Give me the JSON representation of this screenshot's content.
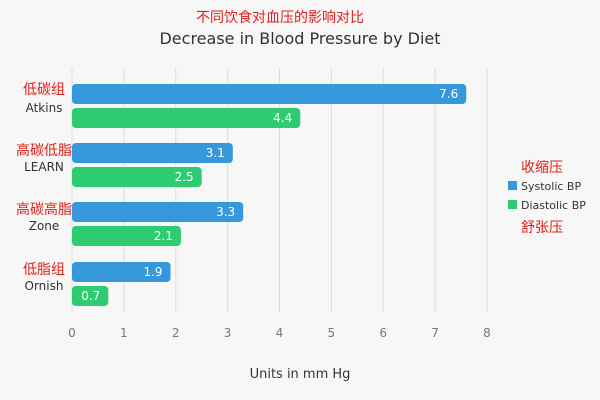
{
  "annotation_top": "不同饮食对血压的影响对比",
  "annotation_legend_top": "收缩压",
  "annotation_legend_bottom": "舒张压",
  "category_annotations": [
    "低碳组",
    "高碳低脂",
    "高碳高脂",
    "低脂组"
  ],
  "chart_data": {
    "type": "bar",
    "orientation": "horizontal",
    "title": "Decrease in Blood Pressure by Diet",
    "xlabel": "Units in mm Hg",
    "ylabel": "",
    "categories": [
      "Atkins",
      "LEARN",
      "Zone",
      "Ornish"
    ],
    "series": [
      {
        "name": "Systolic BP",
        "values": [
          7.6,
          3.1,
          3.3,
          1.9
        ],
        "color": "#3498db"
      },
      {
        "name": "Diastolic BP",
        "values": [
          4.4,
          2.5,
          2.1,
          0.7
        ],
        "color": "#2ecc71"
      }
    ],
    "xlim": [
      0,
      8
    ],
    "xticks": [
      "0",
      "1",
      "2",
      "3",
      "4",
      "5",
      "6",
      "7",
      "8"
    ],
    "grid": "vertical",
    "legend_position": "right",
    "data_labels": true
  },
  "colors": {
    "background": "#f7f7f7",
    "grid": "#dddddd",
    "annotation": "#e0201a"
  }
}
